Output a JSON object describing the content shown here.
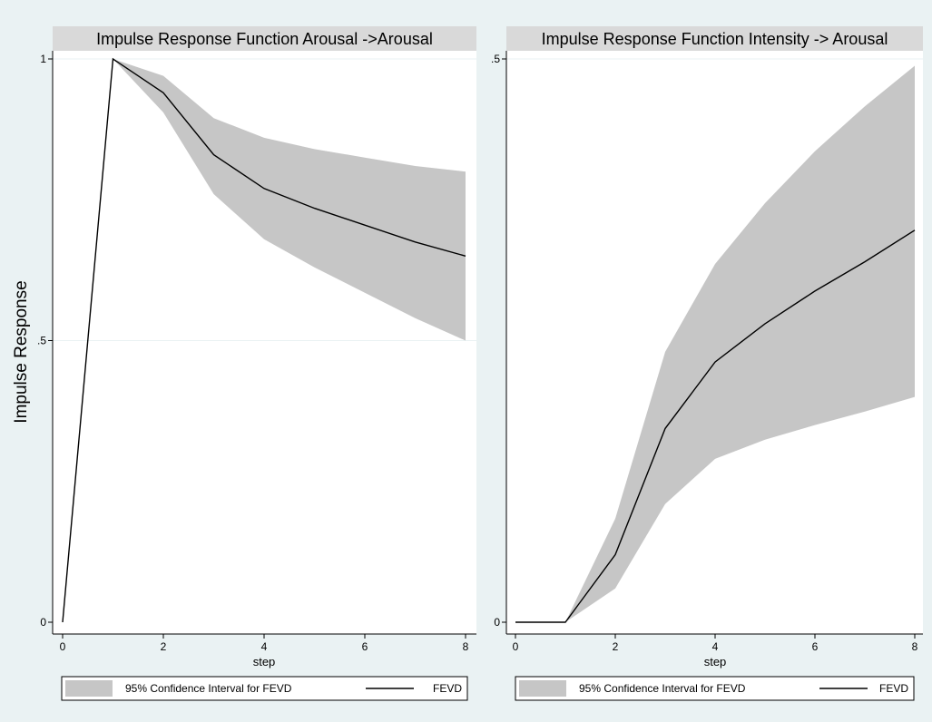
{
  "figure": {
    "ylabel": "Impulse Response"
  },
  "chart_data": [
    {
      "type": "line",
      "title": "Impulse Response Function Arousal ->Arousal",
      "xlabel": "step",
      "ylabel": "Impulse Response",
      "xlim": [
        0,
        8
      ],
      "ylim": [
        0,
        1
      ],
      "x_ticks": [
        0,
        2,
        4,
        6,
        8
      ],
      "x_tick_labels": [
        "0",
        "2",
        "4",
        "6",
        "8"
      ],
      "y_ticks": [
        0,
        0.5,
        1
      ],
      "y_tick_labels": [
        "0",
        ".5",
        "1"
      ],
      "grid": true,
      "legend_position": "bottom",
      "x": [
        0,
        1,
        2,
        3,
        4,
        5,
        6,
        7,
        8
      ],
      "series": [
        {
          "name": "FEVD",
          "kind": "line",
          "color": "#000000",
          "values": [
            0,
            1.0,
            0.94,
            0.83,
            0.77,
            0.735,
            0.705,
            0.675,
            0.65
          ]
        },
        {
          "name": "95% Confidence Interval for FEVD",
          "kind": "band",
          "color": "#c6c6c6",
          "upper": [
            0,
            1.0,
            0.97,
            0.895,
            0.86,
            0.84,
            0.825,
            0.81,
            0.8
          ],
          "lower": [
            0,
            1.0,
            0.905,
            0.76,
            0.68,
            0.63,
            0.585,
            0.54,
            0.5
          ]
        }
      ],
      "legend": [
        {
          "label": "95% Confidence Interval for FEVD",
          "kind": "band"
        },
        {
          "label": "FEVD",
          "kind": "line"
        }
      ]
    },
    {
      "type": "line",
      "title": "Impulse Response Function Intensity -> Arousal",
      "xlabel": "step",
      "ylabel": "",
      "xlim": [
        0,
        8
      ],
      "ylim": [
        0,
        0.5
      ],
      "x_ticks": [
        0,
        2,
        4,
        6,
        8
      ],
      "x_tick_labels": [
        "0",
        "2",
        "4",
        "6",
        "8"
      ],
      "y_ticks": [
        0,
        0.5
      ],
      "y_tick_labels": [
        "0",
        ".5"
      ],
      "grid": true,
      "legend_position": "bottom",
      "x": [
        0,
        1,
        2,
        3,
        4,
        5,
        6,
        7,
        8
      ],
      "series": [
        {
          "name": "FEVD",
          "kind": "line",
          "color": "#000000",
          "values": [
            0,
            0,
            0.06,
            0.172,
            0.231,
            0.265,
            0.294,
            0.32,
            0.348
          ]
        },
        {
          "name": "95% Confidence Interval for FEVD",
          "kind": "band",
          "color": "#c6c6c6",
          "upper": [
            0,
            0,
            0.092,
            0.24,
            0.318,
            0.372,
            0.418,
            0.458,
            0.494
          ],
          "lower": [
            0,
            0,
            0.03,
            0.105,
            0.145,
            0.162,
            0.175,
            0.187,
            0.2
          ]
        }
      ],
      "legend": [
        {
          "label": "95% Confidence Interval for FEVD",
          "kind": "band"
        },
        {
          "label": "FEVD",
          "kind": "line"
        }
      ]
    }
  ]
}
